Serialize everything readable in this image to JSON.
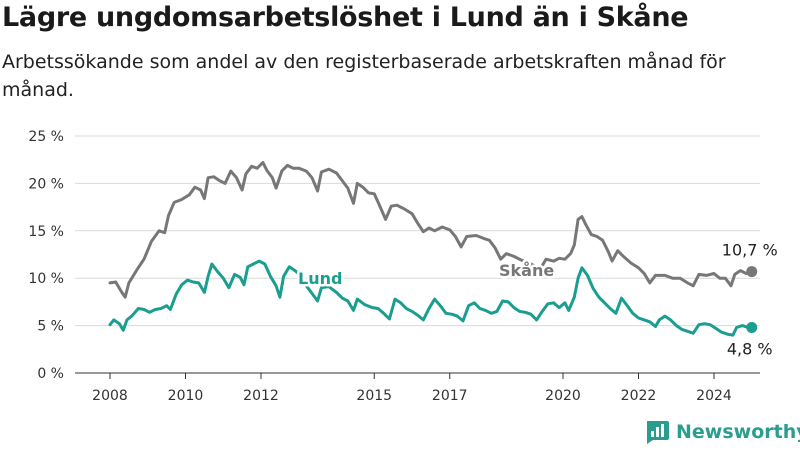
{
  "title": "Lägre ungdomsarbetslöshet i Lund än i Skåne",
  "subtitle": "Arbetssökande som andel av den registerbaserade arbetskraften månad för månad.",
  "brand": "Newsworthy",
  "colors": {
    "skane": "#777777",
    "lund": "#1a9e8f",
    "grid": "#d9d9d9",
    "axis": "#333333"
  },
  "chart_data": {
    "type": "line",
    "title": "Lägre ungdomsarbetslöshet i Lund än i Skåne",
    "ylim": [
      0,
      25
    ],
    "xlim": [
      2008,
      2025.7
    ],
    "y_ticks": [
      {
        "value": 0,
        "label": "0 %"
      },
      {
        "value": 5,
        "label": "5 %"
      },
      {
        "value": 10,
        "label": "10 %"
      },
      {
        "value": 15,
        "label": "15 %"
      },
      {
        "value": 20,
        "label": "20 %"
      },
      {
        "value": 25,
        "label": "25 %"
      }
    ],
    "x_ticks": [
      {
        "value": 2008,
        "label": "2008"
      },
      {
        "value": 2010,
        "label": "2010"
      },
      {
        "value": 2012,
        "label": "2012"
      },
      {
        "value": 2015,
        "label": "2015"
      },
      {
        "value": 2017,
        "label": "2017"
      },
      {
        "value": 2020,
        "label": "2020"
      },
      {
        "value": 2022,
        "label": "2022"
      },
      {
        "value": 2024,
        "label": "2024"
      }
    ],
    "grid": true,
    "series": [
      {
        "name": "Skåne",
        "end_label": "10,7 %",
        "points": [
          [
            2008.0,
            9.5
          ],
          [
            2008.15,
            9.6
          ],
          [
            2008.3,
            8.6
          ],
          [
            2008.4,
            8.0
          ],
          [
            2008.5,
            9.5
          ],
          [
            2008.7,
            10.8
          ],
          [
            2008.9,
            12.0
          ],
          [
            2009.1,
            13.9
          ],
          [
            2009.3,
            15.0
          ],
          [
            2009.45,
            14.8
          ],
          [
            2009.55,
            16.6
          ],
          [
            2009.7,
            18.0
          ],
          [
            2009.9,
            18.3
          ],
          [
            2010.1,
            18.8
          ],
          [
            2010.25,
            19.6
          ],
          [
            2010.4,
            19.3
          ],
          [
            2010.5,
            18.4
          ],
          [
            2010.6,
            20.6
          ],
          [
            2010.75,
            20.7
          ],
          [
            2010.9,
            20.3
          ],
          [
            2011.05,
            20.0
          ],
          [
            2011.2,
            21.3
          ],
          [
            2011.35,
            20.6
          ],
          [
            2011.5,
            19.3
          ],
          [
            2011.6,
            21.0
          ],
          [
            2011.75,
            21.8
          ],
          [
            2011.9,
            21.6
          ],
          [
            2012.05,
            22.2
          ],
          [
            2012.15,
            21.4
          ],
          [
            2012.3,
            20.6
          ],
          [
            2012.4,
            19.5
          ],
          [
            2012.55,
            21.3
          ],
          [
            2012.7,
            21.9
          ],
          [
            2012.85,
            21.6
          ],
          [
            2013.0,
            21.6
          ],
          [
            2013.2,
            21.3
          ],
          [
            2013.35,
            20.6
          ],
          [
            2013.5,
            19.2
          ],
          [
            2013.6,
            21.2
          ],
          [
            2013.8,
            21.5
          ],
          [
            2014.0,
            21.1
          ],
          [
            2014.15,
            20.3
          ],
          [
            2014.3,
            19.5
          ],
          [
            2014.45,
            17.9
          ],
          [
            2014.55,
            20.0
          ],
          [
            2014.7,
            19.6
          ],
          [
            2014.85,
            19.0
          ],
          [
            2015.0,
            18.9
          ],
          [
            2015.15,
            17.6
          ],
          [
            2015.3,
            16.2
          ],
          [
            2015.45,
            17.6
          ],
          [
            2015.6,
            17.7
          ],
          [
            2015.8,
            17.3
          ],
          [
            2016.0,
            16.8
          ],
          [
            2016.15,
            15.8
          ],
          [
            2016.3,
            14.9
          ],
          [
            2016.45,
            15.3
          ],
          [
            2016.6,
            15.0
          ],
          [
            2016.8,
            15.4
          ],
          [
            2017.0,
            15.1
          ],
          [
            2017.15,
            14.4
          ],
          [
            2017.3,
            13.3
          ],
          [
            2017.45,
            14.4
          ],
          [
            2017.7,
            14.5
          ],
          [
            2017.9,
            14.2
          ],
          [
            2018.05,
            14.0
          ],
          [
            2018.2,
            13.2
          ],
          [
            2018.35,
            12.0
          ],
          [
            2018.5,
            12.6
          ],
          [
            2018.7,
            12.3
          ],
          [
            2018.9,
            11.9
          ],
          [
            2019.1,
            11.6
          ],
          [
            2019.25,
            11.3
          ],
          [
            2019.4,
            11.0
          ],
          [
            2019.55,
            12.0
          ],
          [
            2019.75,
            11.8
          ],
          [
            2019.9,
            12.1
          ],
          [
            2020.05,
            12.0
          ],
          [
            2020.2,
            12.6
          ],
          [
            2020.3,
            13.5
          ],
          [
            2020.4,
            16.2
          ],
          [
            2020.5,
            16.5
          ],
          [
            2020.6,
            15.7
          ],
          [
            2020.75,
            14.6
          ],
          [
            2020.9,
            14.4
          ],
          [
            2021.05,
            14.0
          ],
          [
            2021.2,
            12.8
          ],
          [
            2021.3,
            11.8
          ],
          [
            2021.45,
            12.9
          ],
          [
            2021.6,
            12.3
          ],
          [
            2021.8,
            11.6
          ],
          [
            2022.0,
            11.1
          ],
          [
            2022.15,
            10.5
          ],
          [
            2022.3,
            9.5
          ],
          [
            2022.45,
            10.3
          ],
          [
            2022.7,
            10.3
          ],
          [
            2022.9,
            10.0
          ],
          [
            2023.1,
            10.0
          ],
          [
            2023.3,
            9.5
          ],
          [
            2023.45,
            9.2
          ],
          [
            2023.6,
            10.4
          ],
          [
            2023.8,
            10.3
          ],
          [
            2024.0,
            10.5
          ],
          [
            2024.15,
            10.0
          ],
          [
            2024.3,
            10.0
          ],
          [
            2024.45,
            9.2
          ],
          [
            2024.55,
            10.4
          ],
          [
            2024.7,
            10.8
          ],
          [
            2024.85,
            10.5
          ],
          [
            2025.0,
            10.7
          ]
        ]
      },
      {
        "name": "Lund",
        "end_label": "4,8 %",
        "points": [
          [
            2008.0,
            5.1
          ],
          [
            2008.1,
            5.6
          ],
          [
            2008.25,
            5.2
          ],
          [
            2008.35,
            4.5
          ],
          [
            2008.45,
            5.6
          ],
          [
            2008.6,
            6.1
          ],
          [
            2008.75,
            6.8
          ],
          [
            2008.9,
            6.7
          ],
          [
            2009.05,
            6.4
          ],
          [
            2009.2,
            6.7
          ],
          [
            2009.35,
            6.8
          ],
          [
            2009.5,
            7.1
          ],
          [
            2009.6,
            6.7
          ],
          [
            2009.75,
            8.3
          ],
          [
            2009.9,
            9.3
          ],
          [
            2010.05,
            9.8
          ],
          [
            2010.2,
            9.6
          ],
          [
            2010.35,
            9.5
          ],
          [
            2010.5,
            8.5
          ],
          [
            2010.6,
            10.2
          ],
          [
            2010.7,
            11.5
          ],
          [
            2010.85,
            10.7
          ],
          [
            2011.0,
            10.0
          ],
          [
            2011.15,
            9.0
          ],
          [
            2011.3,
            10.4
          ],
          [
            2011.45,
            10.1
          ],
          [
            2011.55,
            9.3
          ],
          [
            2011.65,
            11.2
          ],
          [
            2011.8,
            11.5
          ],
          [
            2011.95,
            11.8
          ],
          [
            2012.1,
            11.5
          ],
          [
            2012.25,
            10.2
          ],
          [
            2012.4,
            9.2
          ],
          [
            2012.5,
            8.0
          ],
          [
            2012.6,
            10.2
          ],
          [
            2012.75,
            11.2
          ],
          [
            2012.9,
            10.8
          ],
          [
            2013.05,
            10.3
          ],
          [
            2013.2,
            9.2
          ],
          [
            2013.35,
            8.4
          ],
          [
            2013.5,
            7.6
          ],
          [
            2013.6,
            9.0
          ],
          [
            2013.8,
            9.1
          ],
          [
            2014.0,
            8.5
          ],
          [
            2014.15,
            7.9
          ],
          [
            2014.3,
            7.6
          ],
          [
            2014.45,
            6.6
          ],
          [
            2014.55,
            7.8
          ],
          [
            2014.75,
            7.2
          ],
          [
            2014.95,
            6.9
          ],
          [
            2015.1,
            6.8
          ],
          [
            2015.25,
            6.3
          ],
          [
            2015.4,
            5.7
          ],
          [
            2015.55,
            7.8
          ],
          [
            2015.7,
            7.4
          ],
          [
            2015.85,
            6.8
          ],
          [
            2016.0,
            6.5
          ],
          [
            2016.15,
            6.1
          ],
          [
            2016.3,
            5.6
          ],
          [
            2016.45,
            6.8
          ],
          [
            2016.6,
            7.8
          ],
          [
            2016.75,
            7.1
          ],
          [
            2016.9,
            6.3
          ],
          [
            2017.05,
            6.2
          ],
          [
            2017.2,
            6.0
          ],
          [
            2017.35,
            5.5
          ],
          [
            2017.5,
            7.1
          ],
          [
            2017.65,
            7.4
          ],
          [
            2017.8,
            6.8
          ],
          [
            2017.95,
            6.6
          ],
          [
            2018.1,
            6.3
          ],
          [
            2018.25,
            6.5
          ],
          [
            2018.4,
            7.6
          ],
          [
            2018.55,
            7.5
          ],
          [
            2018.7,
            6.9
          ],
          [
            2018.85,
            6.5
          ],
          [
            2019.0,
            6.4
          ],
          [
            2019.15,
            6.2
          ],
          [
            2019.3,
            5.6
          ],
          [
            2019.45,
            6.5
          ],
          [
            2019.6,
            7.3
          ],
          [
            2019.75,
            7.4
          ],
          [
            2019.9,
            6.9
          ],
          [
            2020.05,
            7.4
          ],
          [
            2020.15,
            6.6
          ],
          [
            2020.3,
            8.0
          ],
          [
            2020.4,
            10.0
          ],
          [
            2020.5,
            11.1
          ],
          [
            2020.65,
            10.3
          ],
          [
            2020.8,
            8.9
          ],
          [
            2020.95,
            8.0
          ],
          [
            2021.1,
            7.4
          ],
          [
            2021.25,
            6.8
          ],
          [
            2021.4,
            6.3
          ],
          [
            2021.55,
            7.9
          ],
          [
            2021.7,
            7.1
          ],
          [
            2021.85,
            6.3
          ],
          [
            2022.0,
            5.8
          ],
          [
            2022.15,
            5.6
          ],
          [
            2022.3,
            5.4
          ],
          [
            2022.45,
            4.9
          ],
          [
            2022.55,
            5.6
          ],
          [
            2022.7,
            6.0
          ],
          [
            2022.85,
            5.6
          ],
          [
            2023.0,
            5.0
          ],
          [
            2023.15,
            4.6
          ],
          [
            2023.3,
            4.4
          ],
          [
            2023.45,
            4.2
          ],
          [
            2023.6,
            5.1
          ],
          [
            2023.75,
            5.2
          ],
          [
            2023.9,
            5.1
          ],
          [
            2024.05,
            4.7
          ],
          [
            2024.2,
            4.3
          ],
          [
            2024.35,
            4.1
          ],
          [
            2024.5,
            4.0
          ],
          [
            2024.6,
            4.8
          ],
          [
            2024.75,
            5.0
          ],
          [
            2024.9,
            4.8
          ],
          [
            2025.0,
            4.8
          ]
        ]
      }
    ]
  }
}
